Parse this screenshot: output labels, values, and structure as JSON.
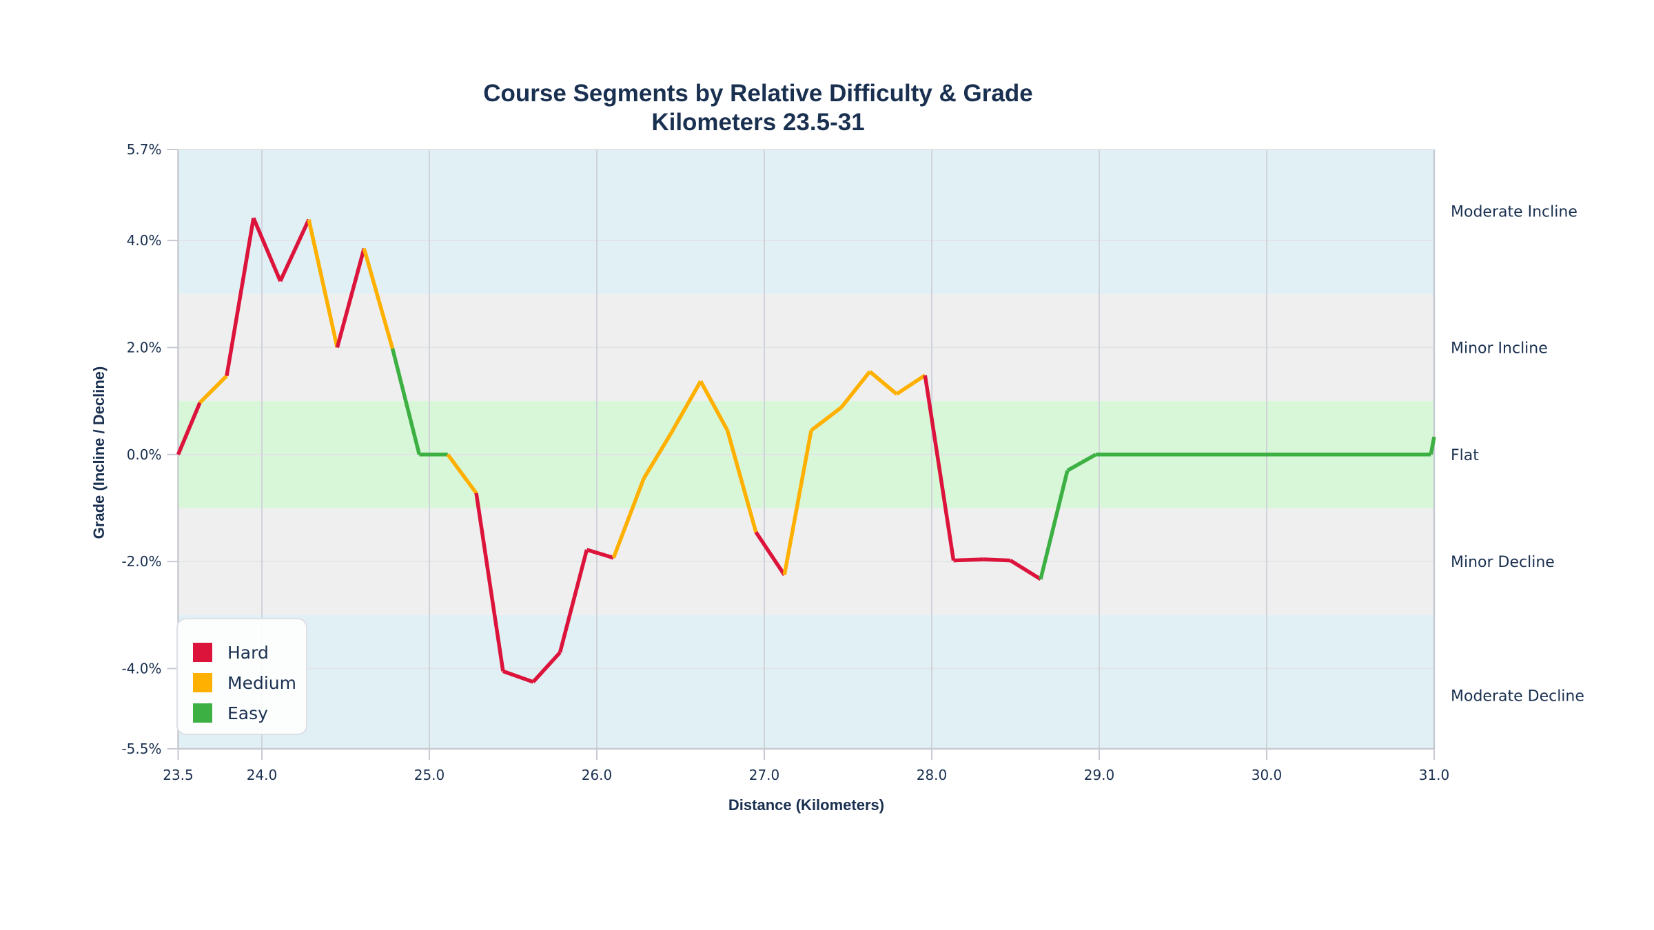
{
  "chart_data": {
    "type": "line",
    "title": "Course Segments by Relative Difficulty & Grade",
    "subtitle": "Kilometers 23.5-31",
    "xlabel": "Distance (Kilometers)",
    "ylabel": "Grade (Incline / Decline)",
    "xlim": [
      23.5,
      31.0
    ],
    "ylim": [
      -5.5,
      5.7
    ],
    "x_ticks": [
      23.5,
      24.0,
      25.0,
      26.0,
      27.0,
      28.0,
      29.0,
      30.0,
      31.0
    ],
    "x_tick_labels": [
      "23.5",
      "24.0",
      "25.0",
      "26.0",
      "27.0",
      "28.0",
      "29.0",
      "30.0",
      "31.0"
    ],
    "y_ticks": [
      5.7,
      4.0,
      2.0,
      0.0,
      -2.0,
      -4.0,
      -5.5
    ],
    "y_tick_labels": [
      "5.7%",
      "4.0%",
      "2.0%",
      "0.0%",
      "-2.0%",
      "-4.0%",
      "-5.5%"
    ],
    "grid": true,
    "legend_position": "lower-left",
    "legend": [
      {
        "label": "Hard",
        "color": "#dc143c"
      },
      {
        "label": "Medium",
        "color": "#ffb000"
      },
      {
        "label": "Easy",
        "color": "#3cb043"
      }
    ],
    "bands": [
      {
        "label": "Moderate Incline",
        "from": 3.0,
        "to": 5.7,
        "color": "#e1f0f5"
      },
      {
        "label": "Minor Incline",
        "from": 1.0,
        "to": 3.0,
        "color": "#efefef"
      },
      {
        "label": "Flat",
        "from": -1.0,
        "to": 1.0,
        "color": "#d8f7d8"
      },
      {
        "label": "Minor Decline",
        "from": -3.0,
        "to": -1.0,
        "color": "#efefef"
      },
      {
        "label": "Moderate Decline",
        "from": -5.5,
        "to": -3.0,
        "color": "#e1f0f5"
      }
    ],
    "band_label_positions": [
      4.55,
      2.0,
      0.0,
      -2.0,
      -4.5
    ],
    "points": [
      {
        "km": 23.5,
        "grade": 0.0
      },
      {
        "km": 23.63,
        "grade": 0.97
      },
      {
        "km": 23.79,
        "grade": 1.47
      },
      {
        "km": 23.95,
        "grade": 4.42
      },
      {
        "km": 24.11,
        "grade": 3.24
      },
      {
        "km": 24.28,
        "grade": 4.39
      },
      {
        "km": 24.45,
        "grade": 2.0
      },
      {
        "km": 24.61,
        "grade": 3.85
      },
      {
        "km": 24.78,
        "grade": 1.98
      },
      {
        "km": 24.94,
        "grade": 0.0
      },
      {
        "km": 25.11,
        "grade": 0.0
      },
      {
        "km": 25.28,
        "grade": -0.72
      },
      {
        "km": 25.44,
        "grade": -4.05
      },
      {
        "km": 25.62,
        "grade": -4.25
      },
      {
        "km": 25.78,
        "grade": -3.7
      },
      {
        "km": 25.94,
        "grade": -1.78
      },
      {
        "km": 26.1,
        "grade": -1.93
      },
      {
        "km": 26.28,
        "grade": -0.45
      },
      {
        "km": 26.44,
        "grade": 0.38
      },
      {
        "km": 26.62,
        "grade": 1.37
      },
      {
        "km": 26.78,
        "grade": 0.45
      },
      {
        "km": 26.95,
        "grade": -1.45
      },
      {
        "km": 27.12,
        "grade": -2.25
      },
      {
        "km": 27.28,
        "grade": 0.45
      },
      {
        "km": 27.46,
        "grade": 0.88
      },
      {
        "km": 27.63,
        "grade": 1.55
      },
      {
        "km": 27.79,
        "grade": 1.13
      },
      {
        "km": 27.96,
        "grade": 1.48
      },
      {
        "km": 28.13,
        "grade": -1.98
      },
      {
        "km": 28.31,
        "grade": -1.96
      },
      {
        "km": 28.47,
        "grade": -1.98
      },
      {
        "km": 28.65,
        "grade": -2.33
      },
      {
        "km": 28.81,
        "grade": -0.3
      },
      {
        "km": 28.98,
        "grade": 0.0
      },
      {
        "km": 30.98,
        "grade": 0.0
      },
      {
        "km": 31.0,
        "grade": 0.33
      }
    ],
    "segment_difficulty": [
      "Hard",
      "Medium",
      "Hard",
      "Hard",
      "Hard",
      "Medium",
      "Hard",
      "Medium",
      "Easy",
      "Easy",
      "Medium",
      "Hard",
      "Hard",
      "Hard",
      "Hard",
      "Hard",
      "Medium",
      "Medium",
      "Medium",
      "Medium",
      "Medium",
      "Hard",
      "Medium",
      "Medium",
      "Medium",
      "Medium",
      "Medium",
      "Hard",
      "Hard",
      "Hard",
      "Hard",
      "Easy",
      "Easy",
      "Easy",
      "Easy"
    ]
  },
  "colors": {
    "text": "#1a3050",
    "grid": "#e3e4e8",
    "vgrid": "#d0d3da",
    "axis": "#c8cad2",
    "Hard": "#dc143c",
    "Medium": "#ffb000",
    "Easy": "#3cb043"
  }
}
